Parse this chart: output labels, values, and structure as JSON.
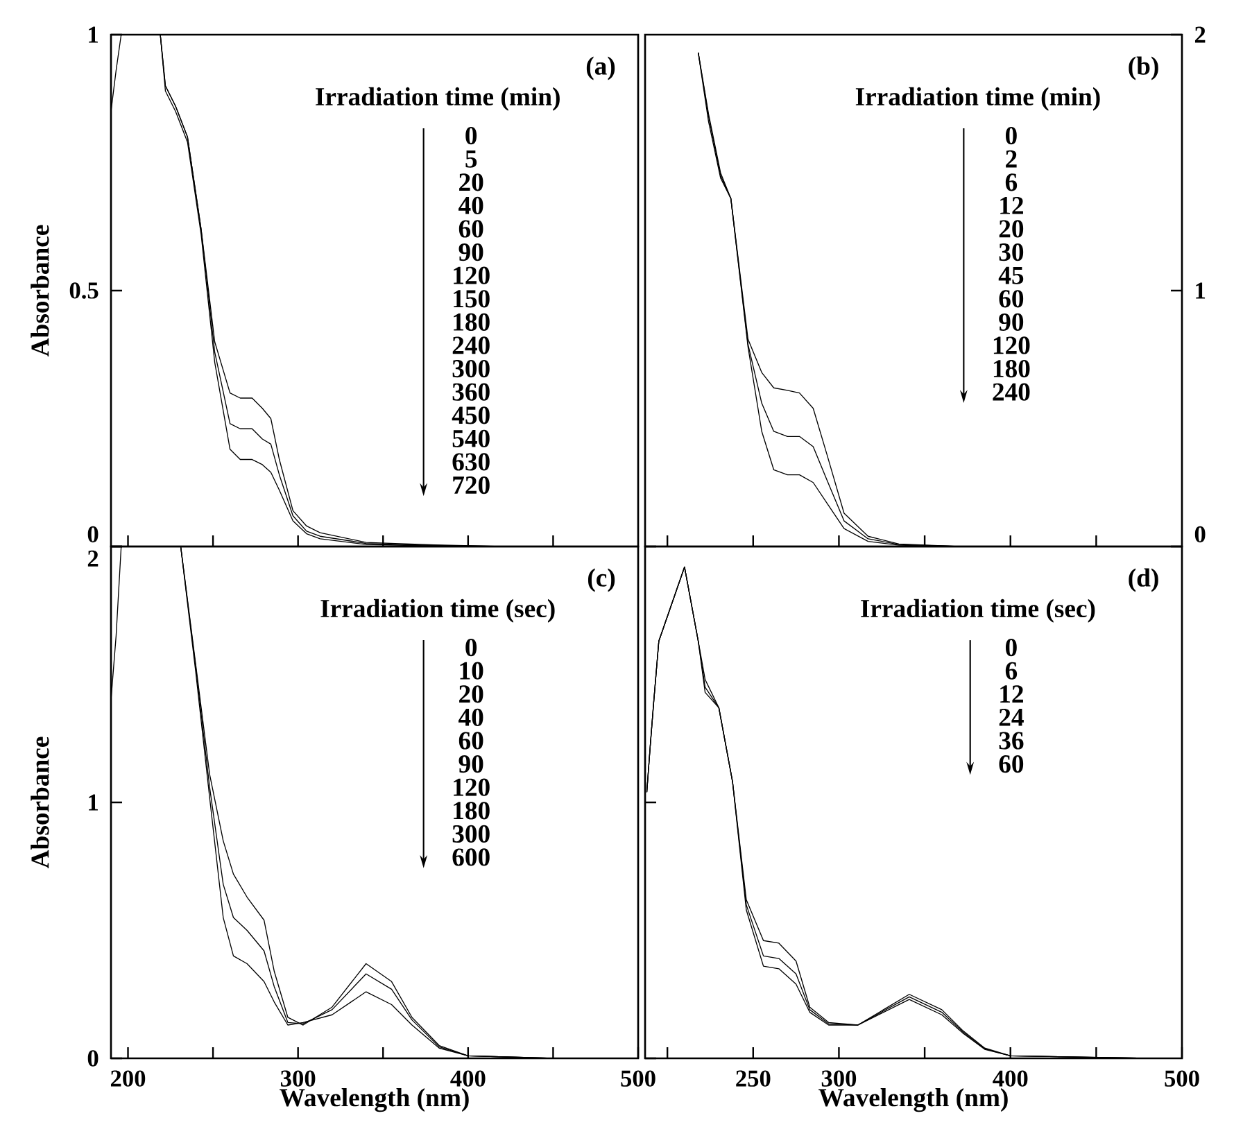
{
  "chart_data": [
    {
      "type": "line",
      "title": "(a)",
      "ylabel": "Absorbance",
      "xlim": [
        190,
        500
      ],
      "ylim": [
        0,
        1
      ],
      "tick_labels": "y",
      "xticks": [
        {
          "value": 200,
          "label": null
        },
        {
          "value": 250,
          "label": null
        },
        {
          "value": 300,
          "label": null
        },
        {
          "value": 350,
          "label": null
        },
        {
          "value": 400,
          "label": null
        },
        {
          "value": 450,
          "label": null
        }
      ],
      "yticks": [
        0,
        0.5,
        1
      ],
      "x": [
        190,
        193,
        196,
        205,
        219,
        222,
        228,
        235,
        243,
        251,
        260,
        266,
        273,
        279,
        284,
        289,
        297,
        305,
        313,
        340,
        380,
        420
      ],
      "series": [
        {
          "color": "#000000",
          "values": [
            0.85,
            0.93,
            1.0,
            null,
            1.0,
            0.9,
            0.86,
            0.8,
            0.62,
            0.4,
            0.3,
            0.29,
            0.29,
            0.27,
            0.25,
            0.17,
            0.07,
            0.04,
            0.027,
            0.008,
            0.003,
            0.0
          ]
        },
        {
          "color": "#000000",
          "values": [
            null,
            null,
            null,
            null,
            1.0,
            0.9,
            0.86,
            0.8,
            0.62,
            0.38,
            0.24,
            0.23,
            0.23,
            0.21,
            0.2,
            0.14,
            0.06,
            0.03,
            0.02,
            0.006,
            0.002,
            0.0
          ]
        },
        {
          "color": "#000000",
          "values": [
            null,
            null,
            null,
            null,
            1.0,
            0.89,
            0.85,
            0.79,
            0.61,
            0.36,
            0.19,
            0.17,
            0.17,
            0.16,
            0.145,
            0.11,
            0.05,
            0.025,
            0.015,
            0.004,
            0.001,
            0.0
          ]
        }
      ],
      "annotations": [
        "Irradiation time (min)",
        "0",
        "5",
        "20",
        "40",
        "60",
        "90",
        "120",
        "150",
        "180",
        "240",
        "300",
        "360",
        "450",
        "540",
        "630",
        "720"
      ]
    },
    {
      "type": "line",
      "title": "(b)",
      "xlim": [
        187,
        500
      ],
      "y2lim": [
        0,
        2
      ],
      "tick_labels": "y",
      "xticks": [
        {
          "value": 200,
          "label": null
        },
        {
          "value": 250,
          "label": null
        },
        {
          "value": 300,
          "label": null
        },
        {
          "value": 350,
          "label": null
        },
        {
          "value": 400,
          "label": null
        },
        {
          "value": 450,
          "label": null
        }
      ],
      "y2ticks": [
        0,
        1,
        2
      ],
      "x": [
        218,
        224,
        231,
        237,
        247,
        255,
        262,
        270,
        277,
        285,
        293,
        303,
        317,
        335,
        370
      ],
      "series": [
        {
          "color": "#000000",
          "axis": "y2",
          "values": [
            1.93,
            1.69,
            1.46,
            1.36,
            0.81,
            0.68,
            0.62,
            0.61,
            0.6,
            0.54,
            0.36,
            0.13,
            0.04,
            0.01,
            0.0
          ]
        },
        {
          "color": "#000000",
          "axis": "y2",
          "values": [
            1.93,
            1.68,
            1.45,
            1.36,
            0.79,
            0.56,
            0.45,
            0.43,
            0.43,
            0.39,
            0.26,
            0.1,
            0.03,
            0.008,
            0.0
          ]
        },
        {
          "color": "#000000",
          "axis": "y2",
          "values": [
            1.93,
            1.66,
            1.44,
            1.36,
            0.78,
            0.45,
            0.3,
            0.28,
            0.28,
            0.25,
            0.17,
            0.07,
            0.02,
            0.005,
            0.0
          ]
        }
      ],
      "annotations": [
        "Irradiation time (min)",
        "0",
        "2",
        "6",
        "12",
        "20",
        "30",
        "45",
        "60",
        "90",
        "120",
        "180",
        "240"
      ]
    },
    {
      "type": "line",
      "title": "(c)",
      "xlabel": "Wavelength (nm)",
      "ylabel": "Absorbance",
      "xlim": [
        190,
        500
      ],
      "ylim": [
        0,
        2
      ],
      "xticks": [
        200,
        {
          "value": 250,
          "label": null
        },
        300,
        {
          "value": 350,
          "label": null
        },
        400,
        {
          "value": 450,
          "label": null
        },
        500
      ],
      "yticks": [
        0,
        1,
        2
      ],
      "x": [
        190,
        193,
        196,
        210,
        231,
        240,
        248,
        256,
        262,
        270,
        280,
        286,
        294,
        303,
        320,
        340,
        355,
        367,
        383,
        400,
        450
      ],
      "series": [
        {
          "color": "#000000",
          "values": [
            1.4,
            1.65,
            2.0,
            null,
            2.0,
            1.53,
            1.11,
            0.85,
            0.72,
            0.63,
            0.54,
            0.34,
            0.16,
            0.13,
            0.2,
            0.37,
            0.3,
            0.16,
            0.05,
            0.01,
            0.0
          ]
        },
        {
          "color": "#000000",
          "values": [
            null,
            null,
            null,
            null,
            2.0,
            1.52,
            1.06,
            0.68,
            0.55,
            0.5,
            0.42,
            0.28,
            0.14,
            0.135,
            0.19,
            0.33,
            0.27,
            0.15,
            0.045,
            0.01,
            0.0
          ]
        },
        {
          "color": "#000000",
          "values": [
            null,
            null,
            null,
            null,
            2.0,
            1.5,
            1.02,
            0.55,
            0.4,
            0.37,
            0.3,
            0.22,
            0.13,
            0.14,
            0.17,
            0.26,
            0.21,
            0.13,
            0.04,
            0.01,
            0.0
          ]
        }
      ],
      "annotations": [
        "Irradiation time (sec)",
        "0",
        "10",
        "20",
        "40",
        "60",
        "90",
        "120",
        "180",
        "300",
        "600"
      ]
    },
    {
      "type": "line",
      "title": "(d)",
      "xlabel": "Wavelength (nm)",
      "xlim": [
        187,
        500
      ],
      "ylim": [
        0,
        2
      ],
      "tick_labels": "x",
      "xticks": [
        {
          "value": 200,
          "label": null
        },
        250,
        300,
        {
          "value": 350,
          "label": null
        },
        400,
        {
          "value": 450,
          "label": null
        },
        500
      ],
      "yticks": [
        {
          "value": 0,
          "label": null
        },
        {
          "value": 1,
          "label": null
        },
        {
          "value": 2,
          "label": null
        }
      ],
      "x": [
        188,
        190,
        192,
        195,
        210,
        218,
        222,
        230,
        238,
        246,
        256,
        265,
        275,
        283,
        294,
        311,
        341,
        360,
        372,
        385,
        400,
        480
      ],
      "series": [
        {
          "color": "#000000",
          "values": [
            1.04,
            1.22,
            1.39,
            1.63,
            1.92,
            1.63,
            1.48,
            1.37,
            1.08,
            0.62,
            0.46,
            0.45,
            0.38,
            0.2,
            0.14,
            0.13,
            0.25,
            0.19,
            0.11,
            0.04,
            0.01,
            0.0
          ]
        },
        {
          "color": "#000000",
          "values": [
            1.04,
            1.22,
            1.39,
            1.63,
            1.92,
            1.63,
            1.45,
            1.37,
            1.08,
            0.6,
            0.4,
            0.39,
            0.33,
            0.19,
            0.135,
            0.13,
            0.24,
            0.18,
            0.105,
            0.037,
            0.01,
            0.0
          ]
        },
        {
          "color": "#000000",
          "values": [
            1.04,
            1.22,
            1.39,
            1.63,
            1.92,
            1.63,
            1.43,
            1.37,
            1.08,
            0.58,
            0.36,
            0.35,
            0.29,
            0.18,
            0.13,
            0.13,
            0.23,
            0.17,
            0.1,
            0.035,
            0.01,
            0.0
          ]
        }
      ],
      "annotations": [
        "Irradiation time (sec)",
        "0",
        "6",
        "12",
        "24",
        "36",
        "60"
      ]
    }
  ]
}
